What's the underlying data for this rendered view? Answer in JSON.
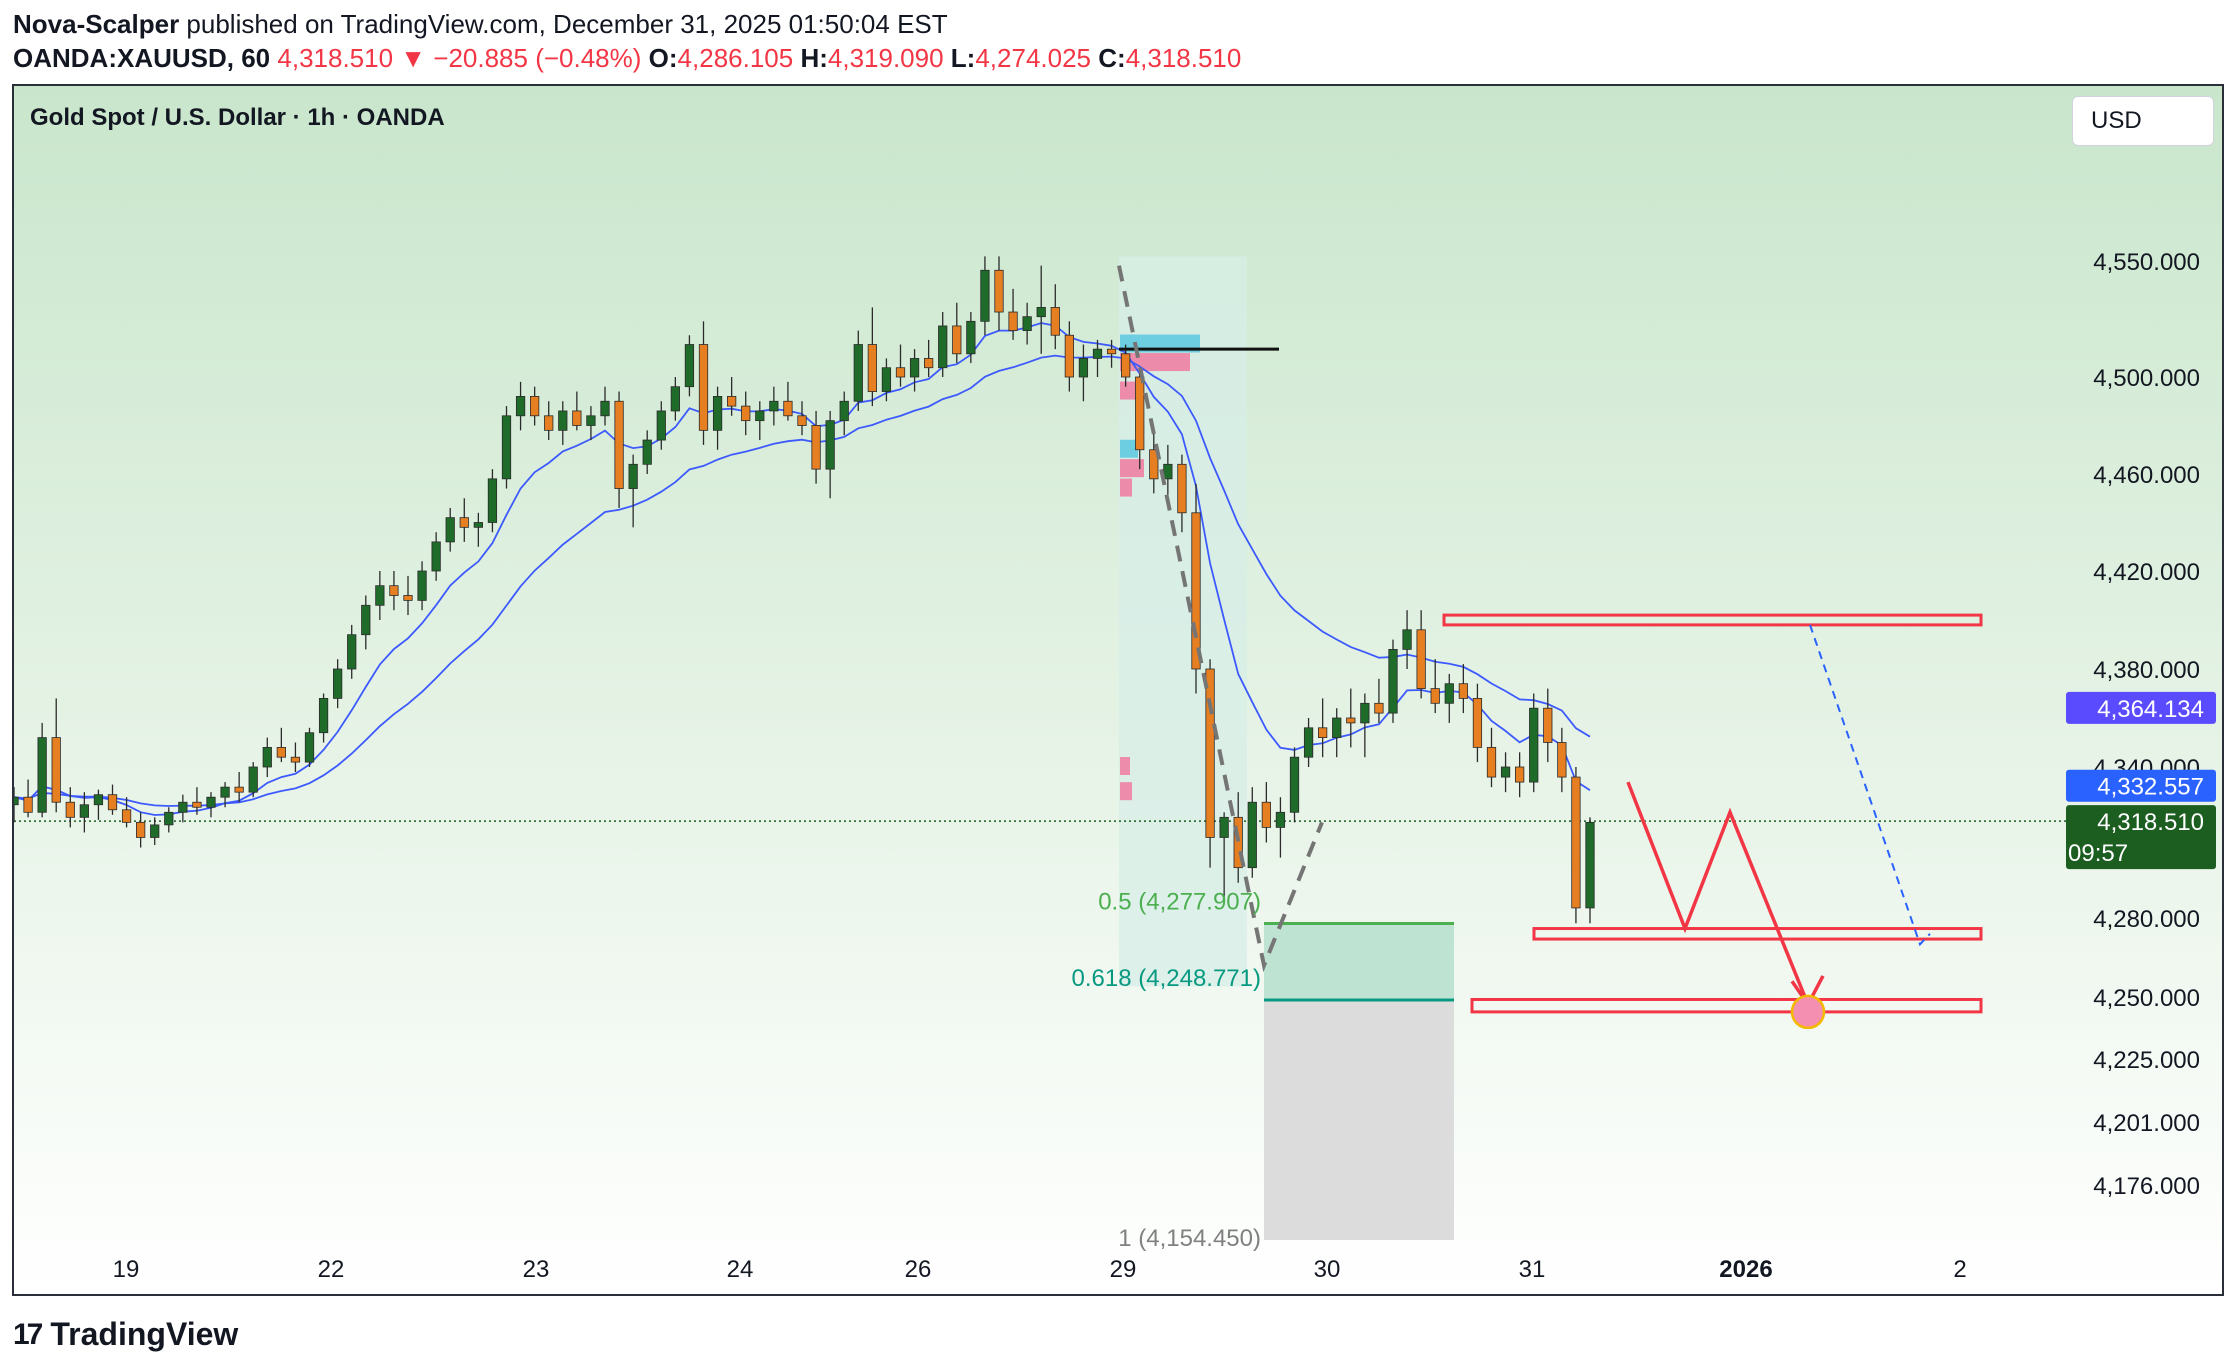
{
  "header": {
    "author": "Nova-Scalper",
    "published_text": " published on TradingView.com, December 31, 2025 01:50:04 EST",
    "symbol": "OANDA:XAUUSD, 60",
    "last_price": "4,318.510",
    "change_arrow": "▼",
    "change": "−20.885 (−0.48%)",
    "o_label": "O:",
    "o_value": "4,286.105",
    "h_label": "H:",
    "h_value": "4,319.090",
    "l_label": "L:",
    "l_value": "4,274.025",
    "c_label": "C:",
    "c_value": "4,318.510"
  },
  "legend_title": "Gold Spot / U.S. Dollar · 1h · OANDA",
  "currency_button": "USD",
  "footer_brand": "TradingView",
  "footer_mark": "17",
  "colors": {
    "up": "#1e6b2a",
    "down": "#e67e22",
    "ema_line": "#3d5afe",
    "zone_red": "#f23645",
    "fib_green": "#4caf50",
    "fib_teal": "#089981",
    "price_badge": "#1b5e20",
    "ema_badge_1": "#5b4bff",
    "ema_badge_2": "#2962ff"
  },
  "chart_data": {
    "type": "candlestick",
    "title": "Gold Spot / U.S. Dollar · 1h · OANDA",
    "y_ticks": [
      "4,550.000",
      "4,500.000",
      "4,460.000",
      "4,420.000",
      "4,380.000",
      "4,340.000",
      "4,280.000",
      "4,250.000",
      "4,225.000",
      "4,201.000",
      "4,176.000"
    ],
    "x_ticks": [
      "19",
      "22",
      "23",
      "24",
      "26",
      "29",
      "30",
      "31",
      "2026",
      "2"
    ],
    "price_labels": {
      "ema_fast": "4,364.134",
      "ema_slow": "4,332.557",
      "last": "4,318.510",
      "countdown": "09:57"
    },
    "fib_levels": [
      {
        "label": "0.5 (4,277.907)",
        "value": 4277.907
      },
      {
        "label": "0.618 (4,248.771)",
        "value": 4248.771
      },
      {
        "label": "1 (4,154.450)",
        "value": 4154.45
      }
    ],
    "zones": [
      {
        "name": "resistance",
        "low": 4398,
        "high": 4402
      },
      {
        "name": "support",
        "low": 4272,
        "high": 4276
      },
      {
        "name": "target",
        "low": 4244,
        "high": 4249
      }
    ],
    "series": [
      {
        "name": "",
        "type": "ohlc",
        "values": [
          [
            4325,
            4332,
            4318,
            4328
          ],
          [
            4328,
            4335,
            4320,
            4322
          ],
          [
            4322,
            4358,
            4320,
            4352
          ],
          [
            4352,
            4368,
            4322,
            4326
          ],
          [
            4326,
            4332,
            4316,
            4320
          ],
          [
            4320,
            4330,
            4314,
            4325
          ],
          [
            4325,
            4331,
            4319,
            4329
          ],
          [
            4329,
            4333,
            4321,
            4323
          ],
          [
            4323,
            4328,
            4316,
            4318
          ],
          [
            4318,
            4322,
            4308,
            4312
          ],
          [
            4312,
            4320,
            4309,
            4317
          ],
          [
            4317,
            4324,
            4314,
            4322
          ],
          [
            4322,
            4329,
            4318,
            4326
          ],
          [
            4326,
            4332,
            4321,
            4324
          ],
          [
            4324,
            4330,
            4320,
            4328
          ],
          [
            4328,
            4334,
            4324,
            4332
          ],
          [
            4332,
            4338,
            4326,
            4330
          ],
          [
            4330,
            4342,
            4328,
            4340
          ],
          [
            4340,
            4352,
            4336,
            4348
          ],
          [
            4348,
            4356,
            4342,
            4344
          ],
          [
            4344,
            4350,
            4338,
            4342
          ],
          [
            4342,
            4356,
            4340,
            4354
          ],
          [
            4354,
            4370,
            4350,
            4368
          ],
          [
            4368,
            4384,
            4364,
            4380
          ],
          [
            4380,
            4398,
            4376,
            4394
          ],
          [
            4394,
            4410,
            4388,
            4406
          ],
          [
            4406,
            4420,
            4400,
            4414
          ],
          [
            4414,
            4420,
            4404,
            4410
          ],
          [
            4410,
            4418,
            4402,
            4408
          ],
          [
            4408,
            4424,
            4404,
            4420
          ],
          [
            4420,
            4436,
            4416,
            4432
          ],
          [
            4432,
            4446,
            4428,
            4442
          ],
          [
            4442,
            4450,
            4432,
            4438
          ],
          [
            4438,
            4444,
            4430,
            4440
          ],
          [
            4440,
            4462,
            4436,
            4458
          ],
          [
            4458,
            4488,
            4454,
            4484
          ],
          [
            4484,
            4498,
            4478,
            4492
          ],
          [
            4492,
            4496,
            4480,
            4484
          ],
          [
            4484,
            4490,
            4474,
            4478
          ],
          [
            4478,
            4490,
            4472,
            4486
          ],
          [
            4486,
            4494,
            4478,
            4480
          ],
          [
            4480,
            4488,
            4474,
            4484
          ],
          [
            4484,
            4496,
            4480,
            4490
          ],
          [
            4490,
            4494,
            4446,
            4454
          ],
          [
            4454,
            4468,
            4438,
            4464
          ],
          [
            4464,
            4478,
            4460,
            4474
          ],
          [
            4474,
            4490,
            4470,
            4486
          ],
          [
            4486,
            4500,
            4482,
            4496
          ],
          [
            4496,
            4518,
            4492,
            4514
          ],
          [
            4514,
            4524,
            4472,
            4478
          ],
          [
            4478,
            4496,
            4470,
            4492
          ],
          [
            4492,
            4500,
            4484,
            4488
          ],
          [
            4488,
            4494,
            4476,
            4482
          ],
          [
            4482,
            4490,
            4474,
            4486
          ],
          [
            4486,
            4496,
            4480,
            4490
          ],
          [
            4490,
            4498,
            4482,
            4484
          ],
          [
            4484,
            4490,
            4476,
            4480
          ],
          [
            4480,
            4486,
            4456,
            4462
          ],
          [
            4462,
            4486,
            4450,
            4482
          ],
          [
            4482,
            4494,
            4476,
            4490
          ],
          [
            4490,
            4520,
            4486,
            4514
          ],
          [
            4514,
            4530,
            4488,
            4494
          ],
          [
            4494,
            4508,
            4490,
            4504
          ],
          [
            4504,
            4514,
            4496,
            4500
          ],
          [
            4500,
            4512,
            4494,
            4508
          ],
          [
            4508,
            4516,
            4500,
            4504
          ],
          [
            4504,
            4528,
            4500,
            4522
          ],
          [
            4522,
            4532,
            4506,
            4510
          ],
          [
            4510,
            4528,
            4506,
            4524
          ],
          [
            4524,
            4552,
            4518,
            4546
          ],
          [
            4546,
            4552,
            4520,
            4528
          ],
          [
            4528,
            4538,
            4516,
            4520
          ],
          [
            4520,
            4532,
            4514,
            4526
          ],
          [
            4526,
            4548,
            4510,
            4530
          ],
          [
            4530,
            4540,
            4512,
            4518
          ],
          [
            4518,
            4524,
            4494,
            4500
          ],
          [
            4500,
            4514,
            4490,
            4508
          ],
          [
            4508,
            4516,
            4500,
            4512
          ],
          [
            4512,
            4516,
            4504,
            4510
          ],
          [
            4510,
            4514,
            4496,
            4500
          ],
          [
            4500,
            4504,
            4462,
            4470
          ],
          [
            4470,
            4478,
            4452,
            4458
          ],
          [
            4458,
            4472,
            4450,
            4464
          ],
          [
            4464,
            4468,
            4436,
            4444
          ],
          [
            4444,
            4456,
            4370,
            4380
          ],
          [
            4380,
            4384,
            4300,
            4312
          ],
          [
            4312,
            4322,
            4288,
            4320
          ],
          [
            4320,
            4330,
            4294,
            4300
          ],
          [
            4300,
            4332,
            4296,
            4326
          ],
          [
            4326,
            4334,
            4310,
            4316
          ],
          [
            4316,
            4328,
            4304,
            4322
          ],
          [
            4322,
            4348,
            4318,
            4344
          ],
          [
            4344,
            4360,
            4340,
            4356
          ],
          [
            4356,
            4368,
            4344,
            4352
          ],
          [
            4352,
            4364,
            4344,
            4360
          ],
          [
            4360,
            4372,
            4348,
            4358
          ],
          [
            4358,
            4370,
            4344,
            4366
          ],
          [
            4366,
            4376,
            4358,
            4362
          ],
          [
            4362,
            4392,
            4358,
            4388
          ],
          [
            4388,
            4404,
            4380,
            4396
          ],
          [
            4396,
            4404,
            4368,
            4372
          ],
          [
            4372,
            4384,
            4362,
            4366
          ],
          [
            4366,
            4378,
            4358,
            4374
          ],
          [
            4374,
            4382,
            4362,
            4368
          ],
          [
            4368,
            4374,
            4342,
            4348
          ],
          [
            4348,
            4356,
            4332,
            4336
          ],
          [
            4336,
            4346,
            4330,
            4340
          ],
          [
            4340,
            4346,
            4328,
            4334
          ],
          [
            4334,
            4370,
            4330,
            4364
          ],
          [
            4364,
            4372,
            4342,
            4350
          ],
          [
            4350,
            4356,
            4330,
            4336
          ],
          [
            4336,
            4340,
            4278,
            4284
          ],
          [
            4284,
            4320,
            4278,
            4318
          ]
        ]
      },
      {
        "name": "",
        "type": "line",
        "role": "ema_fast"
      },
      {
        "name": "",
        "type": "line",
        "role": "ema_slow"
      }
    ],
    "grid": false,
    "legend": "none"
  }
}
